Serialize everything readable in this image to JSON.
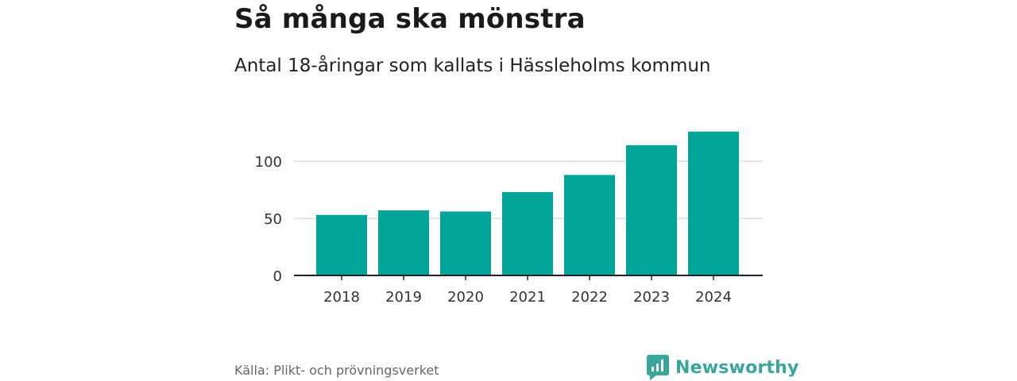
{
  "title": "Så många ska mönstra",
  "subtitle": "Antal 18-åringar som kallats i Hässleholms kommun",
  "source": "Källa: Plikt- och prövningsverket",
  "brand": "Newsworthy",
  "colors": {
    "bar": "#00a59a",
    "grid": "#dddddd",
    "axis": "#222222",
    "brand": "#3aa59a"
  },
  "chart_data": {
    "type": "bar",
    "categories": [
      "2018",
      "2019",
      "2020",
      "2021",
      "2022",
      "2023",
      "2024"
    ],
    "values": [
      53,
      57,
      56,
      73,
      88,
      114,
      126
    ],
    "ylim": [
      0,
      130
    ],
    "yticks": [
      0,
      50,
      100
    ],
    "title": "",
    "xlabel": "",
    "ylabel": "",
    "grid": true
  }
}
